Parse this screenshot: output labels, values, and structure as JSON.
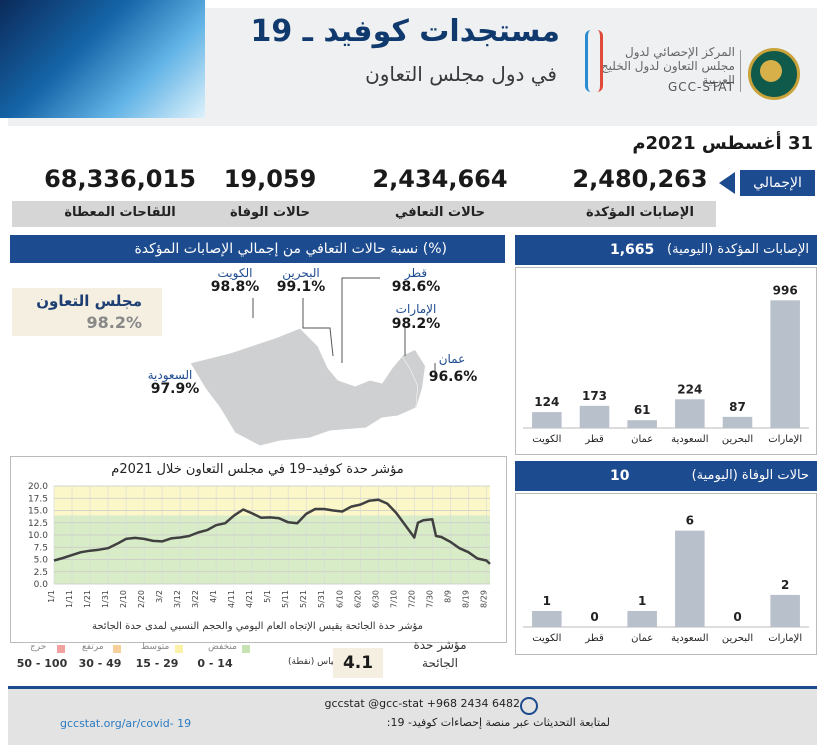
{
  "header": {
    "title": "مستجدات كوفيد ـ 19",
    "subtitle": "في دول مجلس التعاون",
    "logo_arabic": "المركز الإحصائي لدول مجلس التعاون لدول الخليج العربية",
    "logo_english": "GCC-STAT"
  },
  "date": "31 أغسطس 2021م",
  "totals_label": "الإجمالي",
  "totals": [
    {
      "label": "الإصابات المؤكدة",
      "value": "2,480,263"
    },
    {
      "label": "حالات التعافي",
      "value": "2,434,664"
    },
    {
      "label": "حالات الوفاة",
      "value": "19,059"
    },
    {
      "label": "اللقاحات المعطاة",
      "value": "68,336,015"
    }
  ],
  "recovery": {
    "title": "نسبة حالات التعافي من إجمالي الإصابات المؤكدة (%)",
    "gcc_name": "مجلس التعاون",
    "gcc_pct": "98.2%",
    "countries": [
      {
        "name": "الكويت",
        "pct": "98.8%"
      },
      {
        "name": "البحرين",
        "pct": "99.1%"
      },
      {
        "name": "قطر",
        "pct": "98.6%"
      },
      {
        "name": "الإمارات",
        "pct": "98.2%"
      },
      {
        "name": "عمان",
        "pct": "96.6%"
      },
      {
        "name": "السعودية",
        "pct": "97.9%"
      }
    ]
  },
  "colors": {
    "navy": "#1d4b8f",
    "bar": "#b8c0cc",
    "line": "#404040"
  },
  "chart_data": [
    {
      "type": "bar",
      "title": "الإصابات المؤكدة (اليومية)",
      "total": "1,665",
      "categories": [
        "الكويت",
        "قطر",
        "عمان",
        "السعودية",
        "البحرين",
        "الإمارات"
      ],
      "values": [
        124,
        173,
        61,
        224,
        87,
        996
      ],
      "ylim": [
        0,
        1100
      ]
    },
    {
      "type": "bar",
      "title": "حالات الوفاة (اليومية)",
      "total": "10",
      "categories": [
        "الكويت",
        "قطر",
        "عمان",
        "السعودية",
        "البحرين",
        "الإمارات"
      ],
      "values": [
        1,
        0,
        1,
        6,
        0,
        2
      ],
      "ylim": [
        0,
        6.6
      ]
    },
    {
      "type": "line",
      "title": "مؤشر حدة كوفيد–19 في مجلس التعاون خلال 2021م",
      "note": "مؤشر حدة الجائحة يقيس الإتجاه العام اليومي والحجم النسبي لمدى حدة الجائحة",
      "ylim": [
        0,
        20
      ],
      "yticks": [
        "0.0",
        "2.5",
        "5.0",
        "7.5",
        "10.0",
        "12.5",
        "15.0",
        "17.5",
        "20.0"
      ],
      "xticks": [
        "1/1",
        "1/11",
        "1/21",
        "1/31",
        "2/10",
        "2/20",
        "3/2",
        "3/12",
        "3/22",
        "4/1",
        "4/11",
        "4/21",
        "5/1",
        "5/11",
        "5/21",
        "5/31",
        "6/10",
        "6/20",
        "6/30",
        "7/10",
        "7/20",
        "7/30",
        "8/9",
        "8/19",
        "8/29"
      ],
      "grid": true,
      "bands": [
        {
          "from": 0,
          "to": 14,
          "color": "#d8ecc8"
        },
        {
          "from": 14,
          "to": 20,
          "color": "#fbf7c8"
        }
      ],
      "x": [
        "1/1",
        "1/6",
        "1/11",
        "1/16",
        "1/21",
        "1/26",
        "1/31",
        "2/5",
        "2/10",
        "2/15",
        "2/20",
        "2/25",
        "3/2",
        "3/7",
        "3/12",
        "3/17",
        "3/22",
        "3/27",
        "4/1",
        "4/6",
        "4/11",
        "4/16",
        "4/21",
        "4/26",
        "5/1",
        "5/6",
        "5/11",
        "5/16",
        "5/21",
        "5/26",
        "5/31",
        "6/5",
        "6/10",
        "6/15",
        "6/20",
        "6/25",
        "6/30",
        "7/5",
        "7/10",
        "7/15",
        "7/20",
        "7/22",
        "7/25",
        "7/30",
        "8/1",
        "8/4",
        "8/9",
        "8/14",
        "8/19",
        "8/24",
        "8/29",
        "8/31"
      ],
      "y": [
        4.8,
        5.3,
        5.9,
        6.5,
        6.8,
        7.0,
        7.3,
        8.2,
        9.2,
        9.4,
        9.2,
        8.8,
        8.7,
        9.3,
        9.5,
        9.8,
        10.5,
        11.0,
        12.0,
        12.4,
        14.0,
        15.2,
        14.4,
        13.5,
        13.6,
        13.4,
        12.6,
        12.4,
        14.3,
        15.3,
        15.3,
        15.0,
        14.8,
        15.8,
        16.2,
        17.0,
        17.2,
        16.4,
        14.5,
        12.0,
        9.5,
        12.5,
        13.0,
        13.2,
        9.8,
        9.6,
        8.6,
        7.3,
        6.5,
        5.2,
        4.8,
        4.1
      ]
    }
  ],
  "severity": {
    "label": "مؤشر حدة الجائحة",
    "value": "4.1",
    "scale_caption": "المقياس (نقطة)",
    "levels": [
      {
        "name": "منخفض",
        "range": "0 - 14",
        "color": "#c7e3b4"
      },
      {
        "name": "متوسط",
        "range": "15 - 29",
        "color": "#fbf2a8"
      },
      {
        "name": "مرتفع",
        "range": "30 - 49",
        "color": "#f7cf9a"
      },
      {
        "name": "حرج",
        "range": "50 - 100",
        "color": "#f2a0a0"
      }
    ]
  },
  "footer": {
    "contacts": "gccstat   @gcc-stat   +968 2434 6482",
    "follow": "لمتابعة التحديثات عبر منصة إحصاءات كوفيد- 19:",
    "url": "gccstat.org/ar/covid- 19"
  }
}
